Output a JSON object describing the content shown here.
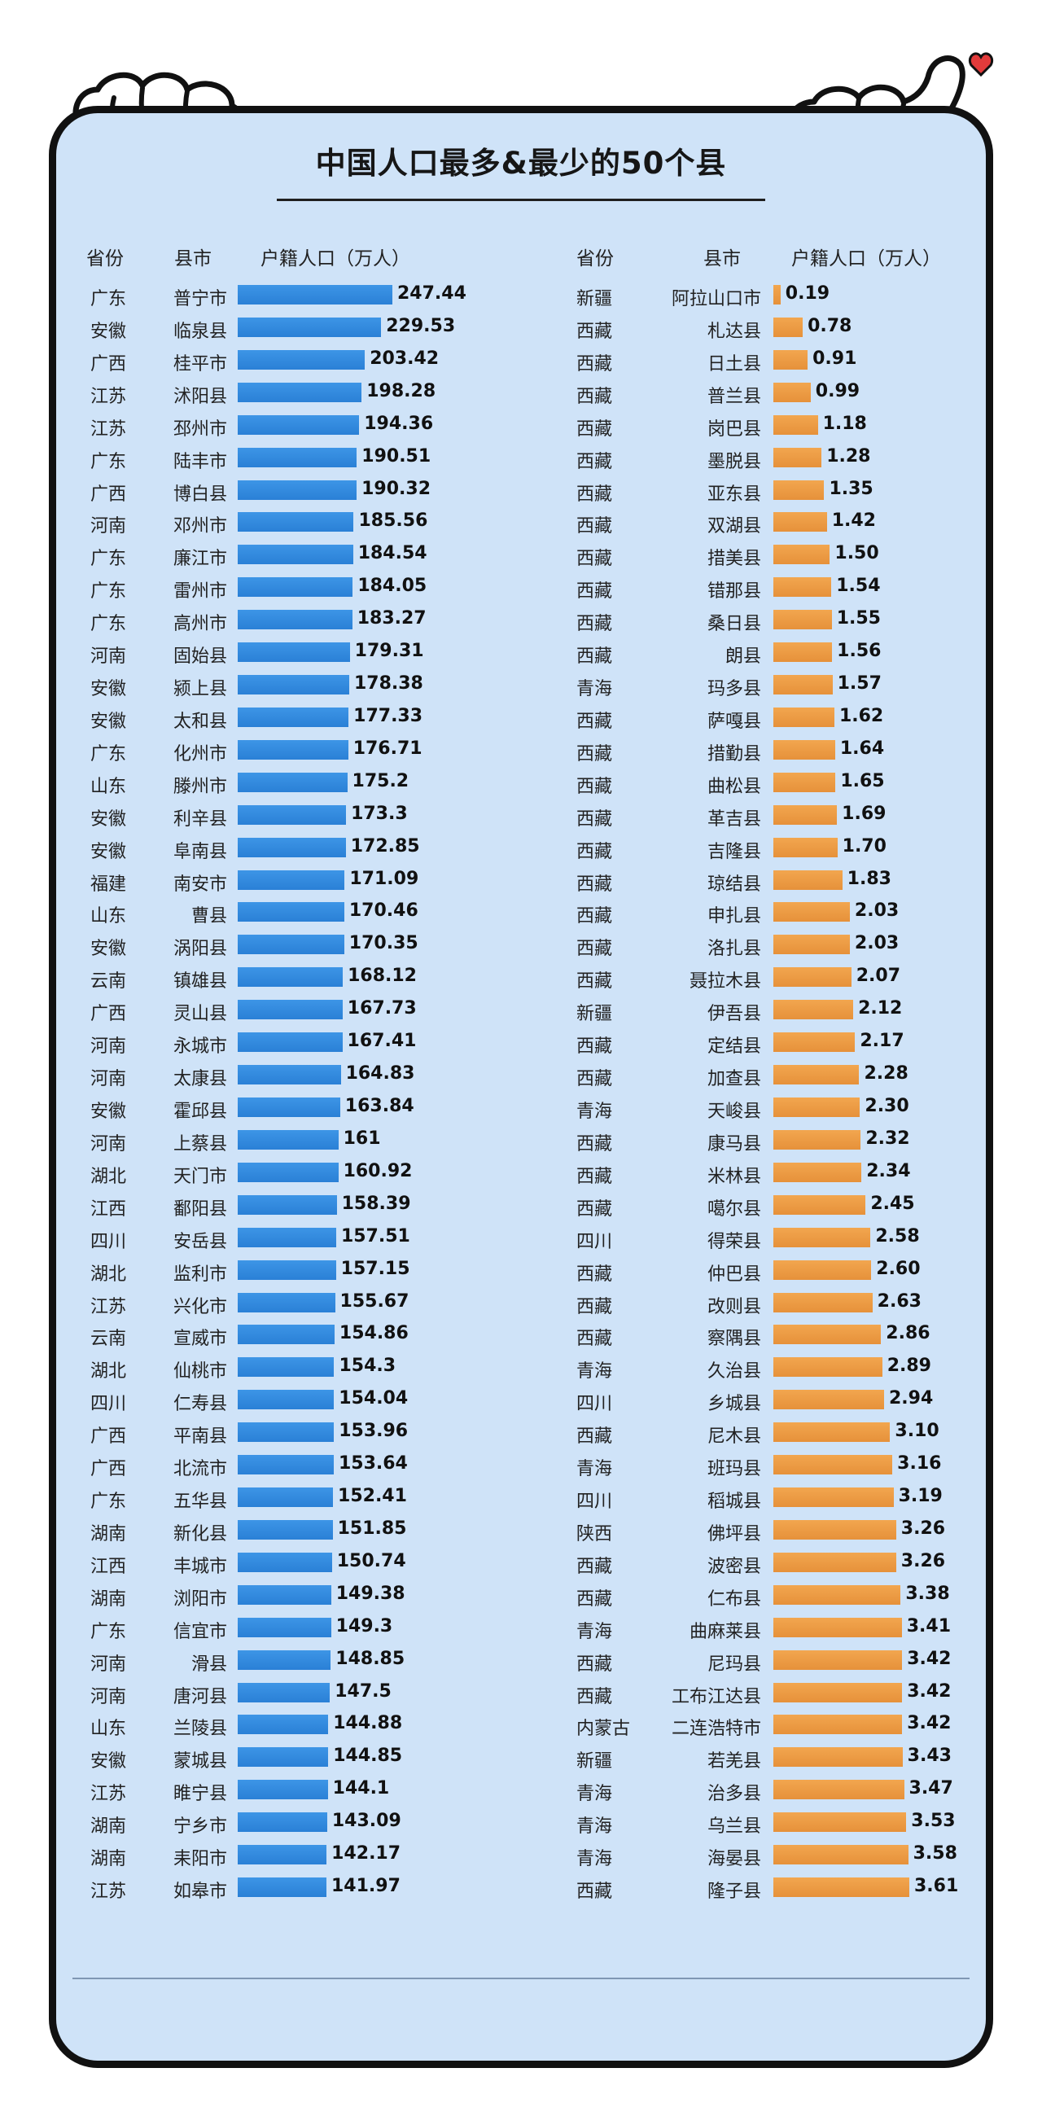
{
  "title": "中国人口最多&最少的50个县",
  "headers": {
    "left": [
      "省份",
      "县市",
      "户籍人口（万人）"
    ],
    "right": [
      "省份",
      "县市",
      "户籍人口（万人）"
    ]
  },
  "colors": {
    "most_bar": "#2f86db",
    "least_bar": "#eb9a43",
    "background": "#cfe3f8"
  },
  "chart_data": [
    {
      "type": "bar",
      "orientation": "horizontal",
      "ylabel": "户籍人口（万人）",
      "rows": [
        [
          "广东",
          "普宁市",
          247.44
        ],
        [
          "安徽",
          "临泉县",
          229.53
        ],
        [
          "广西",
          "桂平市",
          203.42
        ],
        [
          "江苏",
          "沭阳县",
          198.28
        ],
        [
          "江苏",
          "邳州市",
          194.36
        ],
        [
          "广东",
          "陆丰市",
          190.51
        ],
        [
          "广西",
          "博白县",
          190.32
        ],
        [
          "河南",
          "邓州市",
          185.56
        ],
        [
          "广东",
          "廉江市",
          184.54
        ],
        [
          "广东",
          "雷州市",
          184.05
        ],
        [
          "广东",
          "高州市",
          183.27
        ],
        [
          "河南",
          "固始县",
          179.31
        ],
        [
          "安徽",
          "颍上县",
          178.38
        ],
        [
          "安徽",
          "太和县",
          177.33
        ],
        [
          "广东",
          "化州市",
          176.71
        ],
        [
          "山东",
          "滕州市",
          175.2
        ],
        [
          "安徽",
          "利辛县",
          173.3
        ],
        [
          "安徽",
          "阜南县",
          172.85
        ],
        [
          "福建",
          "南安市",
          171.09
        ],
        [
          "山东",
          "曹县",
          170.46
        ],
        [
          "安徽",
          "涡阳县",
          170.35
        ],
        [
          "云南",
          "镇雄县",
          168.12
        ],
        [
          "广西",
          "灵山县",
          167.73
        ],
        [
          "河南",
          "永城市",
          167.41
        ],
        [
          "河南",
          "太康县",
          164.83
        ],
        [
          "安徽",
          "霍邱县",
          163.84
        ],
        [
          "河南",
          "上蔡县",
          161
        ],
        [
          "湖北",
          "天门市",
          160.92
        ],
        [
          "江西",
          "鄱阳县",
          158.39
        ],
        [
          "四川",
          "安岳县",
          157.51
        ],
        [
          "湖北",
          "监利市",
          157.15
        ],
        [
          "江苏",
          "兴化市",
          155.67
        ],
        [
          "云南",
          "宣威市",
          154.86
        ],
        [
          "湖北",
          "仙桃市",
          154.3
        ],
        [
          "四川",
          "仁寿县",
          154.04
        ],
        [
          "广西",
          "平南县",
          153.96
        ],
        [
          "广西",
          "北流市",
          153.64
        ],
        [
          "广东",
          "五华县",
          152.41
        ],
        [
          "湖南",
          "新化县",
          151.85
        ],
        [
          "江西",
          "丰城市",
          150.74
        ],
        [
          "湖南",
          "浏阳市",
          149.38
        ],
        [
          "广东",
          "信宜市",
          149.3
        ],
        [
          "河南",
          "滑县",
          148.85
        ],
        [
          "河南",
          "唐河县",
          147.5
        ],
        [
          "山东",
          "兰陵县",
          144.88
        ],
        [
          "安徽",
          "蒙城县",
          144.85
        ],
        [
          "江苏",
          "睢宁县",
          144.1
        ],
        [
          "湖南",
          "宁乡市",
          143.09
        ],
        [
          "湖南",
          "耒阳市",
          142.17
        ],
        [
          "江苏",
          "如皋市",
          141.97
        ]
      ]
    },
    {
      "type": "bar",
      "orientation": "horizontal",
      "ylabel": "户籍人口（万人）",
      "rows": [
        [
          "新疆",
          "阿拉山口市",
          "0.19"
        ],
        [
          "西藏",
          "札达县",
          "0.78"
        ],
        [
          "西藏",
          "日土县",
          "0.91"
        ],
        [
          "西藏",
          "普兰县",
          "0.99"
        ],
        [
          "西藏",
          "岗巴县",
          "1.18"
        ],
        [
          "西藏",
          "墨脱县",
          "1.28"
        ],
        [
          "西藏",
          "亚东县",
          "1.35"
        ],
        [
          "西藏",
          "双湖县",
          "1.42"
        ],
        [
          "西藏",
          "措美县",
          "1.50"
        ],
        [
          "西藏",
          "错那县",
          "1.54"
        ],
        [
          "西藏",
          "桑日县",
          "1.55"
        ],
        [
          "西藏",
          "朗县",
          "1.56"
        ],
        [
          "青海",
          "玛多县",
          "1.57"
        ],
        [
          "西藏",
          "萨嘎县",
          "1.62"
        ],
        [
          "西藏",
          "措勤县",
          "1.64"
        ],
        [
          "西藏",
          "曲松县",
          "1.65"
        ],
        [
          "西藏",
          "革吉县",
          "1.69"
        ],
        [
          "西藏",
          "吉隆县",
          "1.70"
        ],
        [
          "西藏",
          "琼结县",
          "1.83"
        ],
        [
          "西藏",
          "申扎县",
          "2.03"
        ],
        [
          "西藏",
          "洛扎县",
          "2.03"
        ],
        [
          "西藏",
          "聂拉木县",
          "2.07"
        ],
        [
          "新疆",
          "伊吾县",
          "2.12"
        ],
        [
          "西藏",
          "定结县",
          "2.17"
        ],
        [
          "西藏",
          "加查县",
          "2.28"
        ],
        [
          "青海",
          "天峻县",
          "2.30"
        ],
        [
          "西藏",
          "康马县",
          "2.32"
        ],
        [
          "西藏",
          "米林县",
          "2.34"
        ],
        [
          "西藏",
          "噶尔县",
          "2.45"
        ],
        [
          "四川",
          "得荣县",
          "2.58"
        ],
        [
          "西藏",
          "仲巴县",
          "2.60"
        ],
        [
          "西藏",
          "改则县",
          "2.63"
        ],
        [
          "西藏",
          "察隅县",
          "2.86"
        ],
        [
          "青海",
          "久治县",
          "2.89"
        ],
        [
          "四川",
          "乡城县",
          "2.94"
        ],
        [
          "西藏",
          "尼木县",
          "3.10"
        ],
        [
          "青海",
          "班玛县",
          "3.16"
        ],
        [
          "四川",
          "稻城县",
          "3.19"
        ],
        [
          "陕西",
          "佛坪县",
          "3.26"
        ],
        [
          "西藏",
          "波密县",
          "3.26"
        ],
        [
          "西藏",
          "仁布县",
          "3.38"
        ],
        [
          "青海",
          "曲麻莱县",
          "3.41"
        ],
        [
          "西藏",
          "尼玛县",
          "3.42"
        ],
        [
          "西藏",
          "工布江达县",
          "3.42"
        ],
        [
          "内蒙古",
          "二连浩特市",
          "3.42"
        ],
        [
          "新疆",
          "若羌县",
          "3.43"
        ],
        [
          "青海",
          "治多县",
          "3.47"
        ],
        [
          "青海",
          "乌兰县",
          "3.53"
        ],
        [
          "青海",
          "海晏县",
          "3.58"
        ],
        [
          "西藏",
          "隆子县",
          "3.61"
        ]
      ]
    }
  ]
}
